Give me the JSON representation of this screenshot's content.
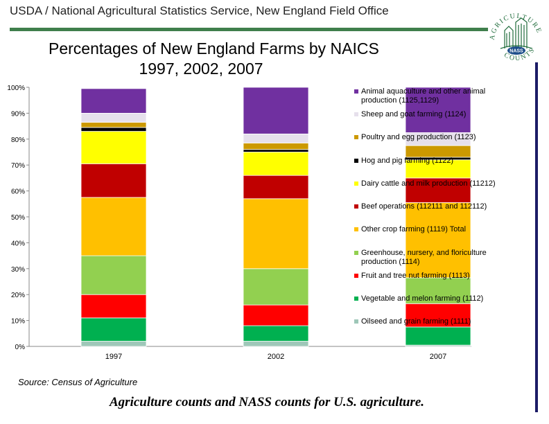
{
  "header": {
    "text": "USDA / National Agricultural Statistics Service, New England Field Office"
  },
  "logo": {
    "top_text": "AGRICULTURE",
    "badge_text": "NASS",
    "bottom_text": "COUNTS"
  },
  "chart_data": {
    "type": "bar",
    "stacked": true,
    "percent": true,
    "title": [
      "Percentages of New England Farms by NAICS",
      "1997, 2002, 2007"
    ],
    "categories": [
      "1997",
      "2002",
      "2007"
    ],
    "ylim": [
      0,
      100
    ],
    "yticks": [
      "0%",
      "10%",
      "20%",
      "30%",
      "40%",
      "50%",
      "60%",
      "70%",
      "80%",
      "90%",
      "100%"
    ],
    "legend_position": "right",
    "series": [
      {
        "name": "Oilseed and grain farming (1111)",
        "color": "#9ec7b8",
        "values": [
          2,
          2,
          0.5
        ]
      },
      {
        "name": "Vegetable and melon farming (1112)",
        "color": "#00b050",
        "values": [
          9,
          6,
          7
        ]
      },
      {
        "name": "Fruit and tree nut farming (1113)",
        "color": "#ff0000",
        "values": [
          9,
          8,
          9
        ]
      },
      {
        "name": "Greenhouse, nursery, and floriculture production (1114)",
        "color": "#92d050",
        "values": [
          15,
          14,
          10
        ]
      },
      {
        "name": "Other crop farming (1119) Total",
        "color": "#ffc000",
        "values": [
          22.5,
          27,
          29
        ]
      },
      {
        "name": "Beef operations (112111 and 112112)",
        "color": "#c00000",
        "values": [
          13,
          9,
          9.5
        ]
      },
      {
        "name": "Dairy cattle and milk production (11212)",
        "color": "#ffff00",
        "values": [
          12.5,
          9,
          7
        ]
      },
      {
        "name": "Hog and pig farming (1122)",
        "color": "#000000",
        "values": [
          1.5,
          1,
          1
        ]
      },
      {
        "name": "Poultry and egg production (1123)",
        "color": "#cc9900",
        "values": [
          2,
          2.5,
          4.5
        ]
      },
      {
        "name": "Sheep and goat farming (1124)",
        "color": "#e6e0ec",
        "values": [
          3.5,
          3.5,
          5
        ]
      },
      {
        "name": "Animal aquaculture and other animal production (1125,1129)",
        "color": "#7030a0",
        "values": [
          9.5,
          18,
          17.5
        ]
      }
    ]
  },
  "footer": {
    "source": "Source: Census of Agriculture",
    "tagline": "Agriculture counts and NASS counts for U.S. agriculture."
  }
}
